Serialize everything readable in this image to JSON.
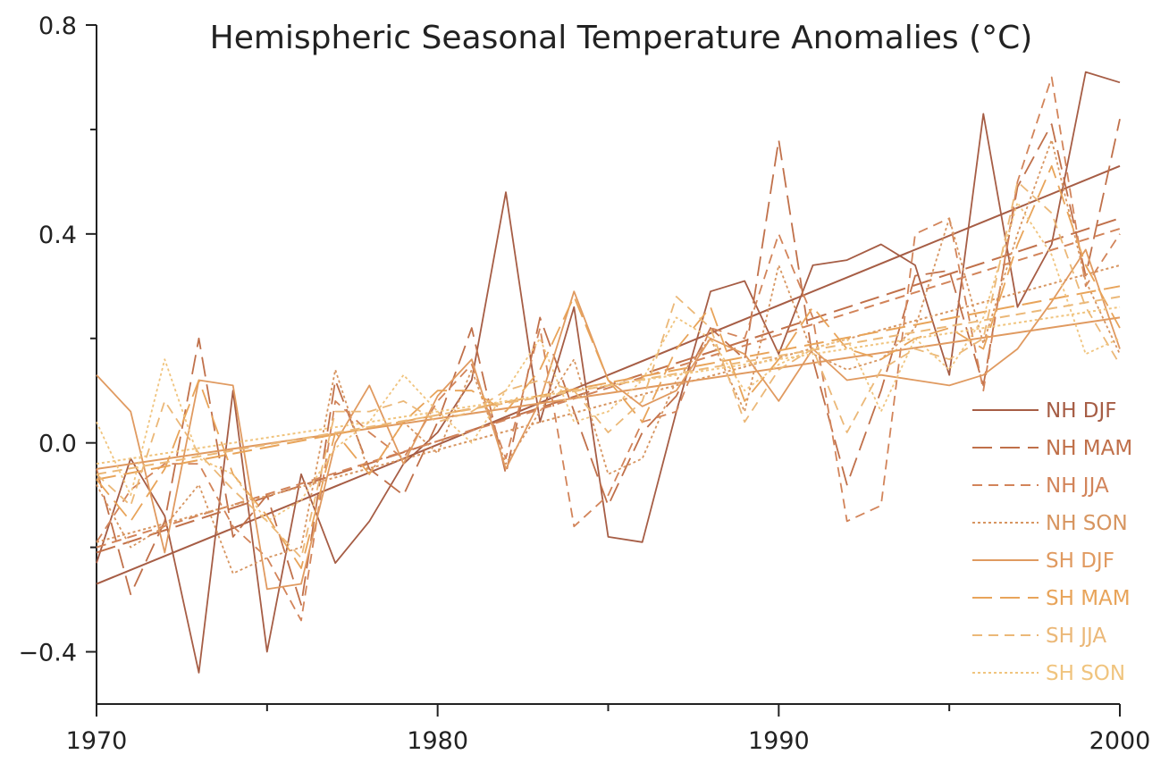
{
  "chart_data": {
    "type": "line",
    "title": "Hemispheric Seasonal Temperature Anomalies (°C)",
    "xlabel": "",
    "ylabel": "",
    "xlim": [
      1970,
      2000
    ],
    "ylim": [
      -0.5,
      0.8
    ],
    "x_ticks": [
      1970,
      1980,
      1990,
      2000
    ],
    "x_minor_ticks": [
      1975,
      1985,
      1995
    ],
    "y_ticks": [
      -0.4,
      0.0,
      0.4,
      0.8
    ],
    "y_tick_labels": [
      "−0.4",
      "0.0",
      "0.4",
      "0.8"
    ],
    "y_minor_ticks": [
      -0.2,
      0.2,
      0.6
    ],
    "legend_position": "bottom-right",
    "x": [
      1970,
      1971,
      1972,
      1973,
      1974,
      1975,
      1976,
      1977,
      1978,
      1979,
      1980,
      1981,
      1982,
      1983,
      1984,
      1985,
      1986,
      1987,
      1988,
      1989,
      1990,
      1991,
      1992,
      1993,
      1994,
      1995,
      1996,
      1997,
      1998,
      1999,
      2000
    ],
    "series": [
      {
        "name": "NH DJF",
        "color": "#a65d45",
        "dash": "solid",
        "values": [
          -0.23,
          -0.03,
          -0.14,
          -0.44,
          0.1,
          -0.4,
          -0.06,
          -0.23,
          -0.15,
          -0.04,
          0.02,
          0.12,
          0.48,
          0.04,
          0.26,
          -0.18,
          -0.19,
          0.06,
          0.29,
          0.31,
          0.17,
          0.34,
          0.35,
          0.38,
          0.34,
          0.13,
          0.63,
          0.26,
          0.38,
          0.71,
          0.69
        ],
        "trend": [
          -0.27,
          0.53
        ]
      },
      {
        "name": "NH MAM",
        "color": "#c0704a",
        "dash": "long",
        "values": [
          -0.05,
          -0.29,
          -0.15,
          0.2,
          -0.18,
          -0.1,
          -0.31,
          0.12,
          -0.05,
          -0.1,
          0.04,
          0.22,
          -0.06,
          0.24,
          0.06,
          -0.12,
          0.02,
          0.09,
          0.22,
          0.16,
          0.58,
          0.16,
          -0.08,
          0.1,
          0.32,
          0.33,
          0.11,
          0.49,
          0.61,
          0.32,
          0.62
        ],
        "trend": [
          -0.21,
          0.43
        ]
      },
      {
        "name": "NH JJA",
        "color": "#d2845a",
        "dash": "medium",
        "values": [
          -0.19,
          -0.09,
          -0.04,
          -0.04,
          -0.16,
          -0.22,
          -0.34,
          0.08,
          0.02,
          -0.03,
          0.08,
          0.15,
          -0.03,
          0.22,
          -0.16,
          -0.1,
          0.04,
          0.06,
          0.22,
          0.2,
          0.4,
          0.24,
          -0.15,
          -0.12,
          0.4,
          0.43,
          0.1,
          0.5,
          0.7,
          0.3,
          0.4
        ],
        "trend": [
          -0.2,
          0.41
        ]
      },
      {
        "name": "NH SON",
        "color": "#d79560",
        "dash": "dotted",
        "values": [
          -0.08,
          -0.2,
          -0.16,
          -0.08,
          -0.25,
          -0.22,
          -0.2,
          0.14,
          -0.06,
          0.04,
          -0.02,
          0.14,
          -0.04,
          0.06,
          0.16,
          -0.06,
          -0.03,
          0.12,
          0.2,
          0.06,
          0.34,
          0.17,
          0.14,
          0.16,
          0.22,
          0.43,
          0.19,
          0.4,
          0.58,
          0.31,
          0.17
        ],
        "trend": [
          -0.19,
          0.34
        ]
      },
      {
        "name": "SH DJF",
        "color": "#e09a60",
        "dash": "solid",
        "values": [
          0.13,
          0.06,
          -0.21,
          0.12,
          0.11,
          -0.28,
          -0.27,
          0.0,
          0.11,
          -0.04,
          0.09,
          0.16,
          -0.05,
          0.08,
          0.29,
          0.12,
          0.07,
          0.1,
          0.2,
          0.17,
          0.08,
          0.18,
          0.12,
          0.13,
          0.12,
          0.11,
          0.13,
          0.18,
          0.27,
          0.37,
          0.18
        ],
        "trend": [
          -0.05,
          0.24
        ]
      },
      {
        "name": "SH MAM",
        "color": "#e8a45a",
        "dash": "long",
        "values": [
          -0.07,
          -0.15,
          -0.05,
          0.12,
          -0.06,
          -0.14,
          -0.24,
          0.02,
          -0.06,
          0.04,
          0.1,
          0.1,
          0.06,
          0.14,
          0.28,
          0.12,
          0.04,
          0.18,
          0.26,
          0.08,
          0.16,
          0.26,
          0.18,
          0.16,
          0.2,
          0.22,
          0.18,
          0.38,
          0.53,
          0.34,
          0.22
        ],
        "trend": [
          -0.07,
          0.3
        ]
      },
      {
        "name": "SH JJA",
        "color": "#ebb878",
        "dash": "medium",
        "values": [
          -0.06,
          -0.12,
          0.08,
          -0.02,
          -0.09,
          -0.15,
          -0.22,
          0.06,
          0.06,
          0.08,
          0.04,
          0.06,
          0.1,
          0.12,
          0.1,
          0.02,
          0.08,
          0.28,
          0.22,
          0.04,
          0.14,
          0.18,
          0.02,
          0.14,
          0.18,
          0.16,
          0.2,
          0.5,
          0.44,
          0.26,
          0.15
        ],
        "trend": [
          -0.06,
          0.28
        ]
      },
      {
        "name": "SH SON",
        "color": "#f0c47e",
        "dash": "dotted",
        "values": [
          0.04,
          -0.1,
          0.16,
          -0.03,
          -0.06,
          -0.15,
          -0.11,
          -0.01,
          0.04,
          0.13,
          0.06,
          0.0,
          0.1,
          0.2,
          0.04,
          0.06,
          0.12,
          0.24,
          0.2,
          0.1,
          0.15,
          0.18,
          0.2,
          0.06,
          0.2,
          0.14,
          0.24,
          0.46,
          0.36,
          0.17,
          0.2
        ],
        "trend": [
          -0.04,
          0.26
        ]
      }
    ]
  }
}
